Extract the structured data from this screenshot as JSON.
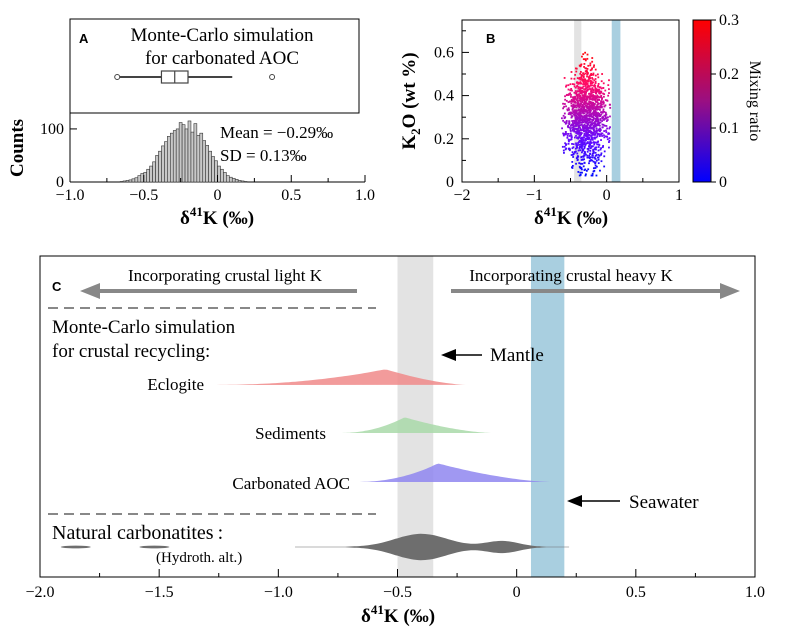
{
  "colors": {
    "mantle_band": "#e3e3e3",
    "seawater_band": "#a9cfe0",
    "eclogite": "#f08a8a",
    "sediments": "#a9d9a9",
    "carbonated_aoc": "#8f86f0",
    "natural": "#6e6e6e",
    "hist_fill": "#c8c8c8",
    "arrow_gray": "#888888"
  },
  "chart_data": [
    {
      "id": "A",
      "type": "bar",
      "panel_label": "A",
      "title": "Monte-Carlo simulation",
      "subtitle": "for carbonated AOC",
      "xlabel_main": "δ",
      "xlabel_sup": "41",
      "xlabel_tail": "K (‰)",
      "ylabel": "Counts",
      "xlim": [
        -1.0,
        1.0
      ],
      "ylim": [
        0,
        130
      ],
      "xticks": [
        "−1.0",
        "−0.5",
        "0",
        "0.5",
        "1.0"
      ],
      "xtick_values": [
        -1.0,
        -0.5,
        0,
        0.5,
        1.0
      ],
      "yticks": [
        "0",
        "100"
      ],
      "ytick_values": [
        0,
        100
      ],
      "mean": -0.29,
      "sd": 0.13,
      "stat_mean": "Mean = −0.29‰",
      "stat_sd": "SD = 0.13‰",
      "bin_width": 0.02,
      "bin_start": -0.66,
      "counts": [
        1,
        2,
        3,
        4,
        6,
        8,
        12,
        16,
        18,
        24,
        30,
        38,
        50,
        58,
        68,
        76,
        86,
        92,
        97,
        100,
        112,
        108,
        100,
        115,
        94,
        110,
        88,
        92,
        78,
        69,
        58,
        48,
        40,
        30,
        24,
        18,
        12,
        9,
        7,
        5,
        3,
        2,
        1
      ],
      "boxplot": {
        "whisker_low": -0.68,
        "q1": -0.38,
        "median": -0.29,
        "q3": -0.2,
        "whisker_high": 0.1,
        "outlier": 0.37
      }
    },
    {
      "id": "B",
      "type": "scatter",
      "panel_label": "B",
      "xlabel_main": "δ",
      "xlabel_sup": "41",
      "xlabel_tail": "K (‰)",
      "ylabel_main": "K",
      "ylabel_sub": "2",
      "ylabel_tail": "O (wt %)",
      "xlim": [
        -2,
        1
      ],
      "ylim": [
        0,
        0.75
      ],
      "xticks": [
        "−2",
        "−1",
        "0",
        "1"
      ],
      "xtick_values": [
        -2,
        -1,
        0,
        1
      ],
      "yticks": [
        "0",
        "0.2",
        "0.4",
        "0.6"
      ],
      "ytick_values": [
        0,
        0.2,
        0.4,
        0.6
      ],
      "mantle_band": [
        -0.45,
        -0.35
      ],
      "seawater_band": [
        0.07,
        0.19
      ],
      "point_cloud": {
        "x_min": -0.62,
        "x_max": 0.05,
        "y_min": 0.03,
        "y_max": 0.62,
        "n_points": 1500
      },
      "colorbar": {
        "label": "Mixing ratio",
        "range": [
          0,
          0.3
        ],
        "ticks": [
          "0",
          "0.1",
          "0.2",
          "0.3"
        ],
        "tick_values": [
          0,
          0.1,
          0.2,
          0.3
        ],
        "color_low": "#0000ff",
        "color_high": "#ff0000"
      }
    },
    {
      "id": "C",
      "type": "area",
      "panel_label": "C",
      "xlabel_main": "δ",
      "xlabel_sup": "41",
      "xlabel_tail": "K (‰)",
      "xlim": [
        -2.0,
        1.0
      ],
      "xticks": [
        "−2.0",
        "−1.5",
        "−1.0",
        "−0.5",
        "0",
        "0.5",
        "1.0"
      ],
      "xtick_values": [
        -2.0,
        -1.5,
        -1.0,
        -0.5,
        0,
        0.5,
        1.0
      ],
      "arrow_left_label": "Incorporating crustal light K",
      "arrow_right_label": "Incorporating crustal heavy K",
      "section_title_1": "Monte-Carlo simulation",
      "section_title_2": "for crustal recycling:",
      "mantle_label": "Mantle",
      "seawater_label": "Seawater",
      "natural_label": "Natural carbonatites",
      "natural_colon": ":",
      "hydroth_label": "(Hydroth. alt.)",
      "mantle_band": [
        -0.5,
        -0.35
      ],
      "seawater_band": [
        0.06,
        0.2
      ],
      "series": [
        {
          "name": "Eclogite",
          "x_min": -1.3,
          "x_max": -0.2,
          "peak": -0.55,
          "max_halfwidth": 0.11
        },
        {
          "name": "Sediments",
          "x_min": -0.75,
          "x_max": -0.1,
          "peak": -0.47,
          "max_halfwidth": 0.11
        },
        {
          "name": "Carbonated AOC",
          "x_min": -0.68,
          "x_max": 0.15,
          "peak": -0.33,
          "max_halfwidth": 0.13
        }
      ],
      "natural": {
        "x_min": -0.93,
        "x_max": 0.22,
        "modes": [
          {
            "x": -0.4,
            "amp": 1.0,
            "sd": 0.11
          },
          {
            "x": -0.06,
            "amp": 0.45,
            "sd": 0.07
          }
        ],
        "small_marks": [
          -1.85,
          -1.52
        ]
      }
    }
  ]
}
